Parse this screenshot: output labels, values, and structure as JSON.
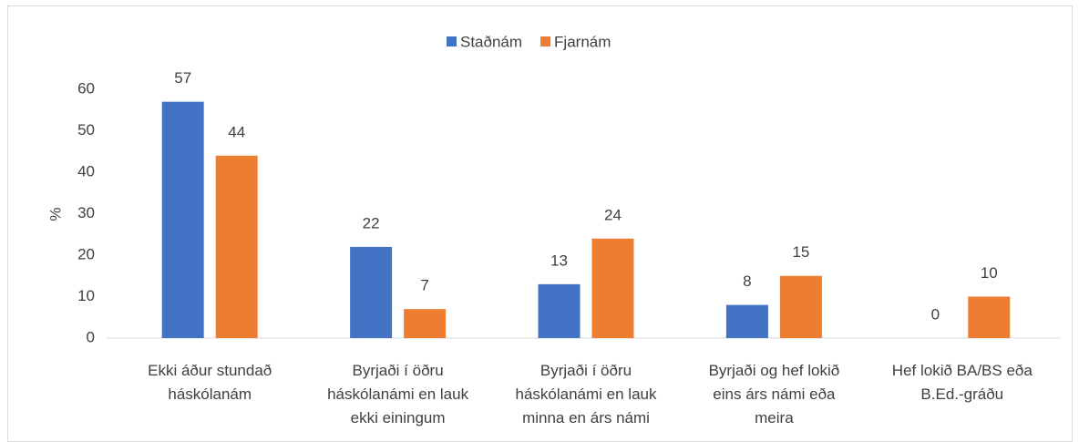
{
  "chart_data": {
    "type": "bar",
    "y_label": "%",
    "categories": [
      "Ekki áður stundað háskólanám",
      "Byrjaði í öðru háskólanámi en lauk ekki einingum",
      "Byrjaði í öðru háskólanámi en lauk minna en árs námi",
      "Byrjaði og hef lokið eins árs námi eða meira",
      "Hef lokið BA/BS eða B.Ed.-gráðu"
    ],
    "series": [
      {
        "name": "Staðnám",
        "color": "#4472c4",
        "values": [
          57,
          22,
          13,
          8,
          0
        ]
      },
      {
        "name": "Fjarnám",
        "color": "#ed7d31",
        "values": [
          44,
          7,
          24,
          15,
          10
        ]
      }
    ],
    "ylim": [
      0,
      60
    ],
    "yticks": [
      0,
      10,
      20,
      30,
      40,
      50,
      60
    ],
    "grid": false,
    "legend": "top"
  }
}
